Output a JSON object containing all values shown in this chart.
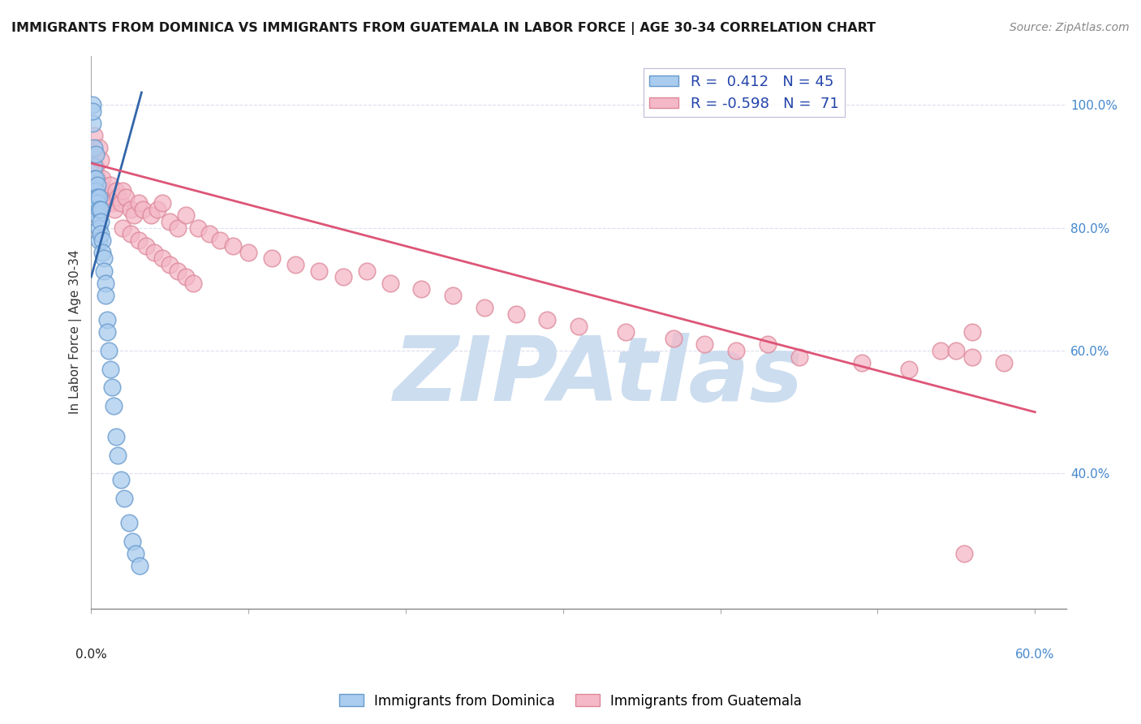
{
  "title": "IMMIGRANTS FROM DOMINICA VS IMMIGRANTS FROM GUATEMALA IN LABOR FORCE | AGE 30-34 CORRELATION CHART",
  "source": "Source: ZipAtlas.com",
  "ylabel": "In Labor Force | Age 30-34",
  "y_ticks": [
    0.4,
    0.6,
    0.8,
    1.0
  ],
  "y_tick_labels": [
    "40.0%",
    "60.0%",
    "80.0%",
    "100.0%"
  ],
  "x_ticks": [
    0.0,
    0.1,
    0.2,
    0.3,
    0.4,
    0.5,
    0.6
  ],
  "x_tick_labels": [
    "",
    "",
    "",
    "",
    "",
    "",
    ""
  ],
  "x_range": [
    0.0,
    0.62
  ],
  "y_range": [
    0.18,
    1.08
  ],
  "dominica_color": "#aaccee",
  "dominica_edge": "#6699cc",
  "guatemala_color": "#f4b8c8",
  "guatemala_edge": "#dd8899",
  "dominica_R": 0.412,
  "dominica_N": 45,
  "guatemala_R": -0.598,
  "guatemala_N": 71,
  "dominica_line_color": "#3366aa",
  "guatemala_line_color": "#dd5577",
  "watermark_text": "ZIPAtlas",
  "watermark_color": "#ccddef",
  "dominica_x": [
    0.001,
    0.001,
    0.001,
    0.002,
    0.002,
    0.002,
    0.002,
    0.002,
    0.003,
    0.003,
    0.003,
    0.003,
    0.003,
    0.003,
    0.004,
    0.004,
    0.004,
    0.004,
    0.005,
    0.005,
    0.005,
    0.005,
    0.006,
    0.006,
    0.006,
    0.007,
    0.007,
    0.008,
    0.008,
    0.009,
    0.009,
    0.01,
    0.01,
    0.011,
    0.012,
    0.013,
    0.014,
    0.016,
    0.017,
    0.019,
    0.021,
    0.024,
    0.026,
    0.028,
    0.031
  ],
  "dominica_y": [
    0.97,
    1.0,
    0.99,
    0.87,
    0.9,
    0.93,
    0.88,
    0.86,
    0.92,
    0.88,
    0.86,
    0.85,
    0.84,
    0.83,
    0.87,
    0.85,
    0.84,
    0.82,
    0.85,
    0.83,
    0.8,
    0.78,
    0.83,
    0.81,
    0.79,
    0.78,
    0.76,
    0.75,
    0.73,
    0.71,
    0.69,
    0.65,
    0.63,
    0.6,
    0.57,
    0.54,
    0.51,
    0.46,
    0.43,
    0.39,
    0.36,
    0.32,
    0.29,
    0.27,
    0.25
  ],
  "dominica_line_x0": 0.0,
  "dominica_line_y0": 0.72,
  "dominica_line_x1": 0.032,
  "dominica_line_y1": 1.02,
  "guatemala_x": [
    0.001,
    0.002,
    0.003,
    0.004,
    0.005,
    0.006,
    0.006,
    0.007,
    0.008,
    0.009,
    0.01,
    0.011,
    0.012,
    0.013,
    0.015,
    0.016,
    0.017,
    0.019,
    0.02,
    0.022,
    0.025,
    0.027,
    0.03,
    0.033,
    0.038,
    0.042,
    0.045,
    0.05,
    0.055,
    0.06,
    0.068,
    0.075,
    0.082,
    0.09,
    0.1,
    0.115,
    0.13,
    0.145,
    0.16,
    0.175,
    0.19,
    0.21,
    0.23,
    0.25,
    0.27,
    0.29,
    0.31,
    0.34,
    0.37,
    0.39,
    0.41,
    0.43,
    0.45,
    0.49,
    0.52,
    0.54,
    0.56,
    0.58,
    0.56,
    0.55,
    0.02,
    0.025,
    0.03,
    0.035,
    0.04,
    0.045,
    0.05,
    0.055,
    0.06,
    0.065,
    0.555
  ],
  "guatemala_y": [
    0.92,
    0.95,
    0.9,
    0.88,
    0.93,
    0.87,
    0.91,
    0.88,
    0.86,
    0.85,
    0.84,
    0.85,
    0.87,
    0.84,
    0.83,
    0.86,
    0.85,
    0.84,
    0.86,
    0.85,
    0.83,
    0.82,
    0.84,
    0.83,
    0.82,
    0.83,
    0.84,
    0.81,
    0.8,
    0.82,
    0.8,
    0.79,
    0.78,
    0.77,
    0.76,
    0.75,
    0.74,
    0.73,
    0.72,
    0.73,
    0.71,
    0.7,
    0.69,
    0.67,
    0.66,
    0.65,
    0.64,
    0.63,
    0.62,
    0.61,
    0.6,
    0.61,
    0.59,
    0.58,
    0.57,
    0.6,
    0.59,
    0.58,
    0.63,
    0.6,
    0.8,
    0.79,
    0.78,
    0.77,
    0.76,
    0.75,
    0.74,
    0.73,
    0.72,
    0.71,
    0.27
  ],
  "guatemala_line_x0": 0.0,
  "guatemala_line_y0": 0.905,
  "guatemala_line_x1": 0.6,
  "guatemala_line_y1": 0.5,
  "background_color": "#ffffff",
  "grid_color": "#ddddee",
  "legend_dominica_label": "Immigrants from Dominica",
  "legend_guatemala_label": "Immigrants from Guatemala"
}
